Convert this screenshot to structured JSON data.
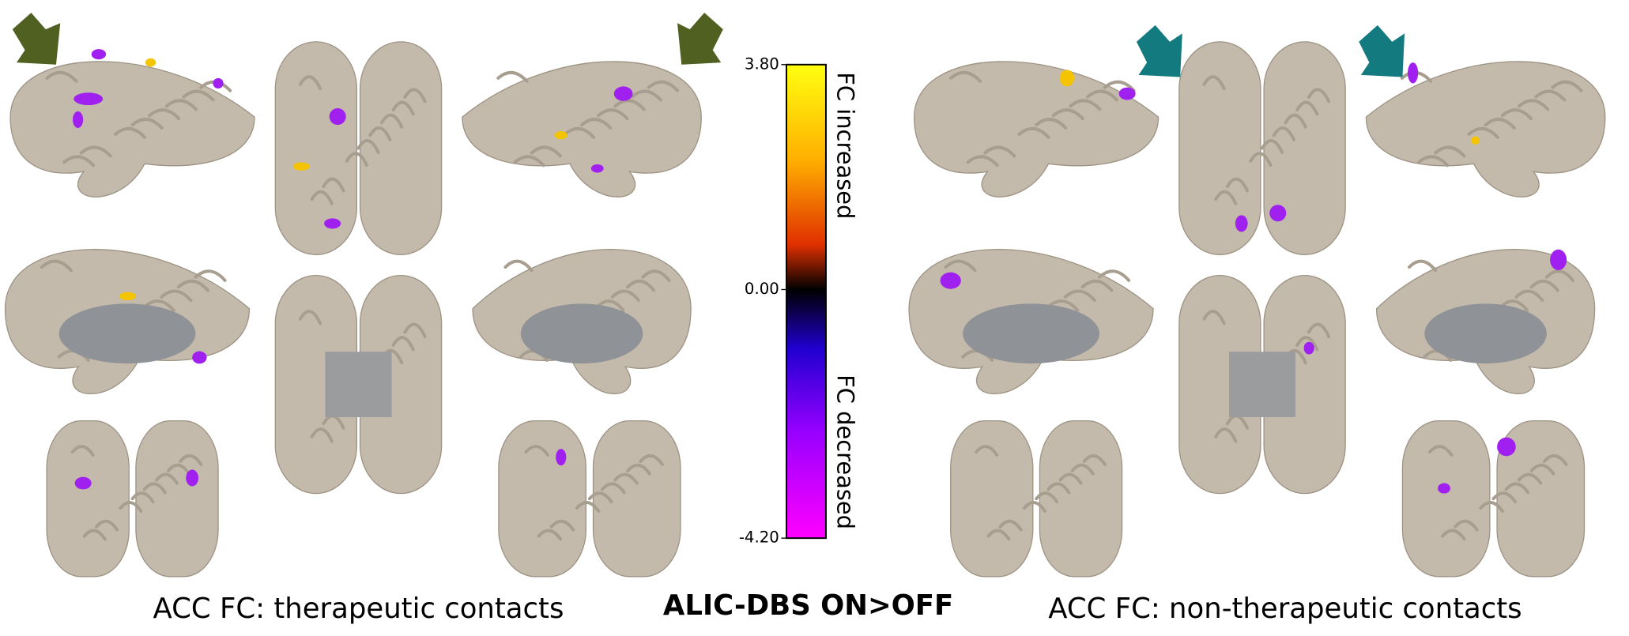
{
  "title": "ALIC-DBS ON>OFF",
  "panels": [
    {
      "caption": "ACC FC: therapeutic contacts"
    },
    {
      "caption": "ACC FC: non-therapeutic contacts"
    }
  ],
  "colorbar": {
    "lim": [
      -4.2,
      3.8
    ],
    "ticks": [
      {
        "value": 3.8,
        "label": "3.80"
      },
      {
        "value": 0,
        "label": "0.00"
      },
      {
        "value": -4.2,
        "label": "-4.20"
      }
    ],
    "label_top": "FC increased",
    "label_bottom": "FC decreased"
  }
}
